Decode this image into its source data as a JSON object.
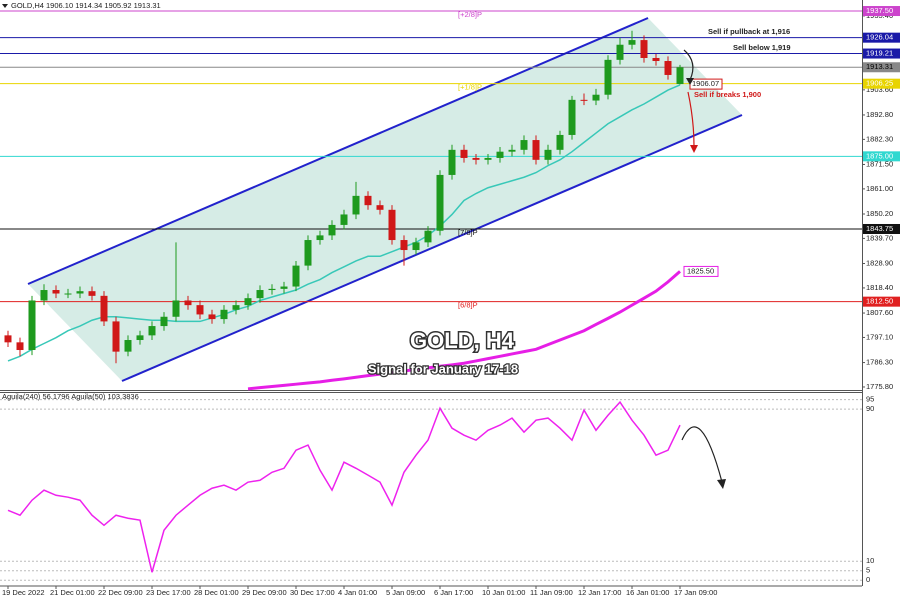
{
  "chart_data": {
    "type": "candlestick",
    "header": "GOLD,H4  1906.10 1914.34 1905.92 1913.31",
    "title": "GOLD, H4",
    "subtitle": "Signal for January 17-18",
    "categories": [
      "19 Dec 2022",
      null,
      null,
      null,
      "21 Dec 01:00",
      null,
      null,
      null,
      "22 Dec 09:00",
      null,
      null,
      null,
      "23 Dec 17:00",
      null,
      null,
      null,
      "28 Dec 01:00",
      null,
      null,
      null,
      "29 Dec 09:00",
      null,
      null,
      null,
      "30 Dec 17:00",
      null,
      null,
      null,
      "4 Jan 01:00",
      null,
      null,
      null,
      "5 Jan 09:00",
      null,
      null,
      null,
      "6 Jan 17:00",
      null,
      null,
      null,
      "10 Jan 01:00",
      null,
      null,
      null,
      "11 Jan 09:00",
      null,
      null,
      null,
      "12 Jan 17:00",
      null,
      null,
      null,
      "16 Jan 01:00",
      null,
      null,
      null,
      "17 Jan 09:00"
    ],
    "open": [
      1798,
      1795,
      1791.7,
      1813,
      1817.5,
      1816,
      1816,
      1817,
      1815,
      1804,
      1791,
      1796,
      1798,
      1802,
      1806,
      1813,
      1811,
      1807,
      1805,
      1809,
      1811,
      1814,
      1817.5,
      1818,
      1819,
      1828,
      1839,
      1841,
      1845.5,
      1850,
      1858,
      1854,
      1852,
      1839,
      1834.7,
      1838,
      1843,
      1867,
      1877.8,
      1874.3,
      1873.5,
      1874.3,
      1877,
      1877.8,
      1882,
      1873.5,
      1877.8,
      1884.2,
      1899.3,
      1899,
      1901.5,
      1916.5,
      1923,
      1925,
      1917.3,
      1916,
      1906.1
    ],
    "high": [
      1800,
      1797,
      1815,
      1820,
      1819.5,
      1818,
      1819,
      1819,
      1817,
      1806,
      1798,
      1800,
      1804,
      1808,
      1838,
      1815,
      1813,
      1809,
      1811,
      1813,
      1816,
      1819.5,
      1820,
      1821,
      1830,
      1841,
      1843,
      1847.5,
      1852,
      1864,
      1860,
      1856,
      1854,
      1841,
      1840,
      1845,
      1869,
      1880,
      1880,
      1876,
      1876,
      1879,
      1880,
      1884,
      1884,
      1880,
      1886,
      1901,
      1902,
      1904,
      1918.5,
      1926,
      1929,
      1927,
      1919,
      1918,
      1914.34
    ],
    "low": [
      1793,
      1789,
      1789.5,
      1811,
      1814,
      1814,
      1814,
      1813,
      1802,
      1786,
      1789,
      1794,
      1796,
      1800,
      1804,
      1809,
      1805,
      1803,
      1803,
      1807,
      1809,
      1812,
      1815.5,
      1816,
      1817,
      1826,
      1837,
      1839,
      1843.5,
      1848,
      1852,
      1850,
      1837,
      1828,
      1832.7,
      1836,
      1841,
      1865,
      1872.3,
      1871.5,
      1871.5,
      1872.3,
      1875,
      1875.8,
      1871.5,
      1871.5,
      1875.8,
      1882.2,
      1897,
      1897,
      1899.5,
      1914.5,
      1921,
      1915.3,
      1914,
      1908,
      1905.92
    ],
    "close": [
      1795,
      1791.7,
      1813,
      1817.5,
      1816,
      1816,
      1817,
      1815,
      1804,
      1791,
      1796,
      1798,
      1802,
      1806,
      1813,
      1811,
      1807,
      1805,
      1809,
      1811,
      1814,
      1817.5,
      1818,
      1819,
      1828,
      1839,
      1841,
      1845.5,
      1850,
      1858,
      1854,
      1852,
      1839,
      1834.7,
      1838,
      1843,
      1867,
      1877.8,
      1874.3,
      1873.5,
      1874.3,
      1877,
      1877.8,
      1882,
      1873.5,
      1877.8,
      1884.2,
      1899.3,
      1899,
      1901.5,
      1916.5,
      1923,
      1925,
      1917.3,
      1916,
      1910,
      1913.31
    ],
    "up_color": "#1e9a1e",
    "down_color": "#d01818",
    "ylim": [
      1774.5,
      1938.8
    ],
    "yticks": [
      {
        "value": 1935.4,
        "label": "1935.40"
      },
      {
        "value": 1903.6,
        "label": "1903.60"
      },
      {
        "value": 1892.8,
        "label": "1892.80"
      },
      {
        "value": 1882.3,
        "label": "1882.30"
      },
      {
        "value": 1871.5,
        "label": "1871.50"
      },
      {
        "value": 1861,
        "label": "1861.00"
      },
      {
        "value": 1850.2,
        "label": "1850.20"
      },
      {
        "value": 1839.7,
        "label": "1839.70"
      },
      {
        "value": 1828.9,
        "label": "1828.90"
      },
      {
        "value": 1818.4,
        "label": "1818.40"
      },
      {
        "value": 1807.6,
        "label": "1807.60"
      },
      {
        "value": 1797.1,
        "label": "1797.10"
      },
      {
        "value": 1786.3,
        "label": "1786.30"
      },
      {
        "value": 1775.8,
        "label": "1775.80"
      }
    ],
    "overlays": [
      {
        "color": "#38c8b8",
        "values": [
          1787,
          1789,
          1792,
          1794.5,
          1797,
          1800,
          1802,
          1804.5,
          1806,
          1806,
          1805.5,
          1805,
          1804.5,
          1804.5,
          1804,
          1804,
          1804,
          1805.5,
          1807,
          1809,
          1810.5,
          1813,
          1814.5,
          1816,
          1817.5,
          1820,
          1822,
          1825,
          1827.5,
          1830,
          1832,
          1832,
          1834,
          1836,
          1838,
          1841,
          1845,
          1850,
          1856,
          1859,
          1861.5,
          1863,
          1864.5,
          1866,
          1868,
          1871,
          1873.5,
          1877,
          1881,
          1885,
          1889,
          1892,
          1895,
          1897.5,
          1900.5,
          1903.5,
          1905.7
        ]
      },
      {
        "color": "#e61ee6",
        "values": [
          null,
          null,
          null,
          null,
          null,
          null,
          null,
          null,
          null,
          null,
          null,
          null,
          null,
          null,
          null,
          null,
          null,
          null,
          null,
          null,
          1775,
          1775.5,
          1776,
          1776.5,
          1777,
          1777.5,
          1778,
          1778.7,
          1779.3,
          1780,
          1780.7,
          1781.3,
          1782,
          1782.7,
          1783.3,
          1784,
          1784.7,
          1785.3,
          1786,
          1787,
          1788,
          1789,
          1790,
          1791,
          1792,
          1794,
          1796,
          1798,
          1800,
          1802.7,
          1805.3,
          1808,
          1811,
          1814,
          1817,
          1821,
          1825.5
        ],
        "end_label": {
          "value": 1825.5,
          "label": "1825.50"
        }
      }
    ],
    "levels": [
      {
        "value": 1937.5,
        "label": "1937.50",
        "color": "#cc44cc",
        "text_color": "#ffffff",
        "tag": "[+2/8]P"
      },
      {
        "value": 1926.04,
        "label": "1926.04",
        "color": "#1a1aa8",
        "text_color": "#ffffff"
      },
      {
        "value": 1919.21,
        "label": "1919.21",
        "color": "#1a1aa8",
        "text_color": "#ffffff"
      },
      {
        "value": 1913.31,
        "label": "1913.31",
        "color": "#888888",
        "text_color": "#000000"
      },
      {
        "value": 1906.25,
        "label": "1906.25",
        "color": "#e8d400",
        "text_color": "#ffffff",
        "tag": "[+1/8]P"
      },
      {
        "value": 1875,
        "label": "1875.00",
        "color": "#30d8d0",
        "text_color": "#ffffff"
      },
      {
        "value": 1843.75,
        "label": "1843.75",
        "color": "#111111",
        "text_color": "#ffffff",
        "tag": "[7/8]P"
      },
      {
        "value": 1812.5,
        "label": "1812.50",
        "color": "#e02020",
        "text_color": "#ffffff",
        "tag": "[6/8]P"
      }
    ],
    "annotations": [
      "Sell if pullback at 1,916",
      "Sell below 1,919",
      "Sell if breaks 1,900"
    ],
    "entry_label": {
      "value": 1906.07,
      "label": "1906.07"
    },
    "indicator": {
      "type": "line",
      "label": "Aguila(240) 56.1796  Aguila(50) 103.3836",
      "color": "#ee22ee",
      "values": [
        36.8,
        34.2,
        42.1,
        47.4,
        44.7,
        43.7,
        42.1,
        34.2,
        28.9,
        34.2,
        32.6,
        31.6,
        4.2,
        26.3,
        34.2,
        39.5,
        44.7,
        48.4,
        50,
        47.4,
        51.6,
        52.6,
        56.8,
        58.9,
        68.4,
        71.1,
        57.9,
        47.4,
        62.1,
        58.9,
        55.3,
        51.6,
        39.5,
        56.8,
        65.8,
        73.7,
        90.5,
        80,
        76.3,
        73.7,
        78.9,
        81.6,
        85.3,
        77.9,
        84.2,
        85.3,
        80,
        73.7,
        89.5,
        78.9,
        86.8,
        93.7,
        84.2,
        76.3,
        65.8,
        68.4,
        81.6
      ],
      "ylim": [
        -2.5,
        98.5
      ],
      "yticks": [
        95,
        90,
        10,
        5,
        0
      ]
    }
  }
}
